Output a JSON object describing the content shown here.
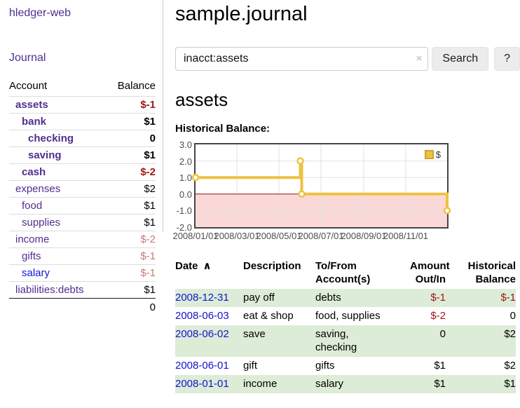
{
  "sidebar": {
    "brand": "hledger-web",
    "nav": {
      "journal_label": "Journal"
    },
    "accounts_table": {
      "col_account": "Account",
      "col_balance": "Balance",
      "rows": [
        {
          "name": "assets",
          "depth": 0,
          "emphasized": true,
          "link_tone": "purple",
          "balance": "$-1",
          "balance_tone": "negative"
        },
        {
          "name": "bank",
          "depth": 1,
          "emphasized": true,
          "link_tone": "purple",
          "balance": "$1",
          "balance_tone": "normal"
        },
        {
          "name": "checking",
          "depth": 2,
          "emphasized": true,
          "link_tone": "purple",
          "balance": "0",
          "balance_tone": "normal"
        },
        {
          "name": "saving",
          "depth": 2,
          "emphasized": true,
          "link_tone": "purple",
          "balance": "$1",
          "balance_tone": "normal"
        },
        {
          "name": "cash",
          "depth": 1,
          "emphasized": true,
          "link_tone": "purple",
          "balance": "$-2",
          "balance_tone": "negative"
        },
        {
          "name": "expenses",
          "depth": 0,
          "emphasized": false,
          "link_tone": "purple",
          "balance": "$2",
          "balance_tone": "normal"
        },
        {
          "name": "food",
          "depth": 1,
          "emphasized": false,
          "link_tone": "purple",
          "balance": "$1",
          "balance_tone": "normal"
        },
        {
          "name": "supplies",
          "depth": 1,
          "emphasized": false,
          "link_tone": "purple",
          "balance": "$1",
          "balance_tone": "normal"
        },
        {
          "name": "income",
          "depth": 0,
          "emphasized": false,
          "link_tone": "purple",
          "balance": "$-2",
          "balance_tone": "negative-soft"
        },
        {
          "name": "gifts",
          "depth": 1,
          "emphasized": false,
          "link_tone": "purple",
          "balance": "$-1",
          "balance_tone": "negative-soft"
        },
        {
          "name": "salary",
          "depth": 1,
          "emphasized": false,
          "link_tone": "blue",
          "balance": "$-1",
          "balance_tone": "negative-soft"
        },
        {
          "name": "liabilities:debts",
          "depth": 0,
          "emphasized": false,
          "link_tone": "purple",
          "balance": "$1",
          "balance_tone": "normal"
        }
      ],
      "total": "0"
    }
  },
  "header": {
    "title": "sample.journal"
  },
  "search": {
    "value": "inacct:assets",
    "clear_icon": "×",
    "button_label": "Search",
    "help_label": "?"
  },
  "account_page": {
    "heading": "assets",
    "chart_title": "Historical Balance:"
  },
  "chart_data": {
    "type": "line",
    "step": true,
    "title": "Historical Balance",
    "series": [
      {
        "name": "$",
        "color": "#edc240",
        "x": [
          "2008-01-01",
          "2008-06-01",
          "2008-06-03",
          "2008-12-31"
        ],
        "values": [
          1,
          2,
          0,
          -1
        ]
      }
    ],
    "x_range": [
      "2008-01-01",
      "2008-12-31"
    ],
    "ylim": [
      -2,
      3
    ],
    "yticks": [
      "3.0",
      "2.0",
      "1.0",
      "0.0",
      "-1.0",
      "-2.0"
    ],
    "xticks": [
      {
        "date": "2008-01-01",
        "label": "2008/01/01"
      },
      {
        "date": "2008-03-01",
        "label": "2008/03/01"
      },
      {
        "date": "2008-05-01",
        "label": "2008/05/01"
      },
      {
        "date": "2008-07-01",
        "label": "2008/07/01"
      },
      {
        "date": "2008-09-01",
        "label": "2008/09/01"
      },
      {
        "date": "2008-11-01",
        "label": "2008/11/01"
      }
    ],
    "grid": true,
    "legend_position": "top-right",
    "negative_region": {
      "from": 0,
      "to": -2,
      "fill": "#fbd8d8",
      "zero_line_color": "#8c1212"
    }
  },
  "register_table": {
    "columns": [
      {
        "line1": "Date",
        "line2": "",
        "align": "left",
        "sort_icon": "∧"
      },
      {
        "line1": "Description",
        "line2": "",
        "align": "left"
      },
      {
        "line1": "To/From",
        "line2": "Account(s)",
        "align": "left"
      },
      {
        "line1": "Amount",
        "line2": "Out/In",
        "align": "right"
      },
      {
        "line1": "Historical",
        "line2": "Balance",
        "align": "right"
      }
    ],
    "rows": [
      {
        "date": "2008-12-31",
        "description": "pay off",
        "accounts": "debts",
        "amount": "$-1",
        "amount_tone": "negative",
        "balance": "$-1",
        "balance_tone": "negative",
        "shaded": true
      },
      {
        "date": "2008-06-03",
        "description": "eat & shop",
        "accounts": "food, supplies",
        "amount": "$-2",
        "amount_tone": "negative",
        "balance": "0",
        "balance_tone": "normal",
        "shaded": false
      },
      {
        "date": "2008-06-02",
        "description": "save",
        "accounts": "saving, checking",
        "amount": "0",
        "amount_tone": "normal",
        "balance": "$2",
        "balance_tone": "normal",
        "shaded": true
      },
      {
        "date": "2008-06-01",
        "description": "gift",
        "accounts": "gifts",
        "amount": "$1",
        "amount_tone": "normal",
        "balance": "$2",
        "balance_tone": "normal",
        "shaded": false
      },
      {
        "date": "2008-01-01",
        "description": "income",
        "accounts": "salary",
        "amount": "$1",
        "amount_tone": "normal",
        "balance": "$1",
        "balance_tone": "normal",
        "shaded": true
      }
    ]
  },
  "colors": {
    "accent_purple": "#512e90",
    "link_blue": "#1414dd",
    "negative_strong": "#9e1516",
    "negative_soft": "#c47b78",
    "row_green": "#dcecd7",
    "chart_line_gold": "#edc240",
    "chart_negative_fill": "#fbd8d8",
    "chart_zero_line": "#8c1212"
  }
}
